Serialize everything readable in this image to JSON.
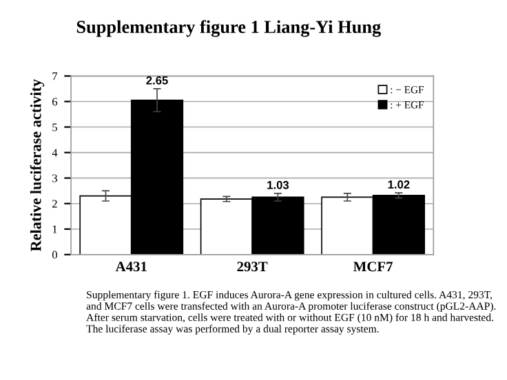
{
  "chart_data": {
    "type": "bar",
    "title": "Supplementary figure 1 Liang-Yi Hung",
    "ylabel": "Relative luciferase activity",
    "categories": [
      "A431",
      "293T",
      "MCF7"
    ],
    "series": [
      {
        "name": ": − EGF",
        "color": "#ffffff",
        "values": [
          2.3,
          2.18,
          2.25
        ],
        "errors": [
          0.2,
          0.1,
          0.15
        ]
      },
      {
        "name": ": + EGF",
        "color": "#000000",
        "values": [
          6.05,
          2.25,
          2.32
        ],
        "errors": [
          0.45,
          0.15,
          0.1
        ]
      }
    ],
    "ylim": [
      0,
      7
    ],
    "yticks": [
      0,
      1,
      2,
      3,
      4,
      5,
      6,
      7
    ],
    "grid": "y",
    "legend": "top right",
    "annotations": [
      {
        "text": "2.65",
        "x": "A431",
        "y": 6.05
      },
      {
        "text": "1.03",
        "x": "293T",
        "y": 2.25
      },
      {
        "text": "1.02",
        "x": "MCF7",
        "y": 2.32
      },
      "Supplementary figure 1. EGF induces Aurora-A gene expression in cultured cells. A431, 293T, and MCF7 cells were transfected with an Aurora-A promoter luciferase construct (pGL2-AAP). After serum starvation, cells were treated with or without EGF (10 nM) for 18 h and harvested. The luciferase assay was performed by a dual reporter assay system."
    ]
  }
}
